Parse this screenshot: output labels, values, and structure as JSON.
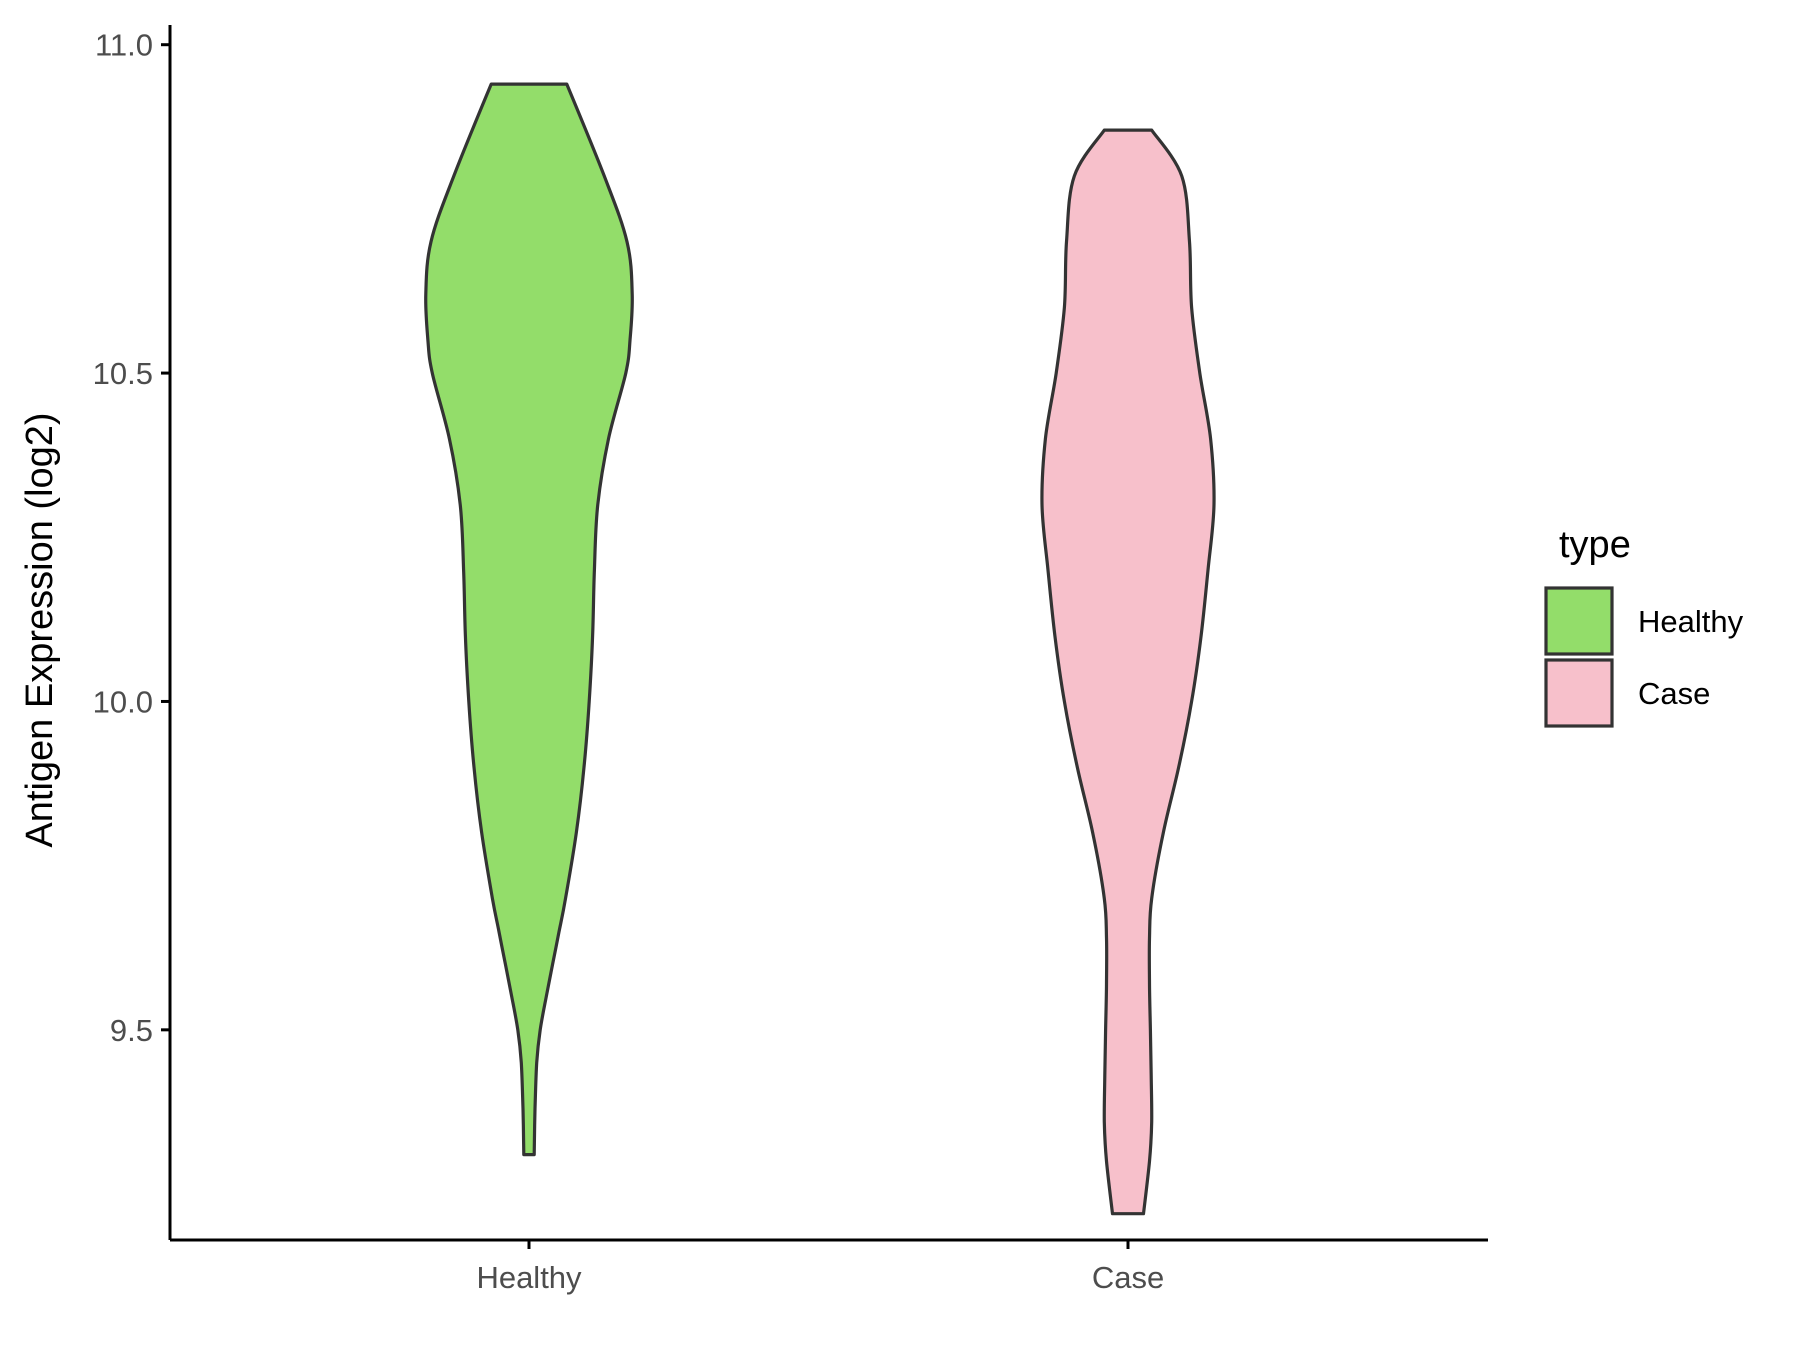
{
  "chart_data": {
    "type": "violin",
    "ylabel": "Antigen Expression (log2)",
    "ylim": [
      9.18,
      11.03
    ],
    "yticks": [
      9.5,
      10.0,
      10.5,
      11.0
    ],
    "ytick_labels": [
      "9.5",
      "10.0",
      "10.5",
      "11.0"
    ],
    "categories": [
      "Healthy",
      "Case"
    ],
    "legend": {
      "title": "type",
      "position": "right",
      "entries": [
        "Healthy",
        "Case"
      ]
    },
    "series": [
      {
        "name": "Healthy",
        "color": "#93DD6A",
        "min": 9.31,
        "max": 10.94,
        "profile_y": [
          9.31,
          9.38,
          9.45,
          9.5,
          9.55,
          9.6,
          9.65,
          9.7,
          9.8,
          9.9,
          10.0,
          10.1,
          10.2,
          10.3,
          10.4,
          10.5,
          10.55,
          10.62,
          10.7,
          10.8,
          10.94
        ],
        "profile_halfwidth": [
          0.012,
          0.014,
          0.018,
          0.026,
          0.04,
          0.055,
          0.07,
          0.085,
          0.11,
          0.128,
          0.14,
          0.148,
          0.152,
          0.16,
          0.185,
          0.225,
          0.235,
          0.24,
          0.228,
          0.175,
          0.088
        ]
      },
      {
        "name": "Case",
        "color": "#F7C0CB",
        "min": 9.22,
        "max": 10.87,
        "profile_y": [
          9.22,
          9.3,
          9.36,
          9.43,
          9.5,
          9.57,
          9.64,
          9.7,
          9.8,
          9.9,
          10.0,
          10.1,
          10.2,
          10.3,
          10.4,
          10.5,
          10.6,
          10.7,
          10.8,
          10.87
        ],
        "profile_halfwidth": [
          0.036,
          0.05,
          0.055,
          0.054,
          0.052,
          0.05,
          0.05,
          0.055,
          0.082,
          0.118,
          0.148,
          0.17,
          0.186,
          0.2,
          0.192,
          0.167,
          0.148,
          0.143,
          0.125,
          0.055
        ]
      }
    ]
  }
}
